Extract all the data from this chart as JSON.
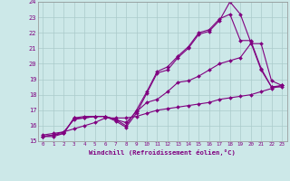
{
  "xlabel": "Windchill (Refroidissement éolien,°C)",
  "ylabel": "",
  "xlim": [
    -0.5,
    23.5
  ],
  "ylim": [
    15,
    24
  ],
  "xticks": [
    0,
    1,
    2,
    3,
    4,
    5,
    6,
    7,
    8,
    9,
    10,
    11,
    12,
    13,
    14,
    15,
    16,
    17,
    18,
    19,
    20,
    21,
    22,
    23
  ],
  "yticks": [
    15,
    16,
    17,
    18,
    19,
    20,
    21,
    22,
    23,
    24
  ],
  "bg_color": "#cce8e8",
  "line_color": "#800080",
  "grid_color": "#aacaca",
  "series": [
    {
      "x": [
        0,
        1,
        2,
        3,
        4,
        5,
        6,
        7,
        8,
        9,
        10,
        11,
        12,
        13,
        14,
        15,
        16,
        17,
        18,
        19,
        20,
        21,
        22,
        23
      ],
      "y": [
        15.3,
        15.3,
        15.5,
        16.5,
        16.5,
        16.6,
        16.6,
        16.3,
        15.9,
        16.8,
        18.1,
        19.4,
        19.6,
        20.4,
        21.0,
        21.9,
        22.1,
        22.8,
        24.0,
        23.2,
        21.4,
        19.6,
        18.5,
        18.6
      ]
    },
    {
      "x": [
        0,
        1,
        2,
        3,
        4,
        5,
        6,
        7,
        8,
        9,
        10,
        11,
        12,
        13,
        14,
        15,
        16,
        17,
        18,
        19,
        20,
        21,
        22,
        23
      ],
      "y": [
        15.3,
        15.4,
        15.5,
        16.5,
        16.6,
        16.6,
        16.6,
        16.4,
        16.0,
        17.0,
        18.2,
        19.5,
        19.8,
        20.5,
        21.1,
        22.0,
        22.2,
        22.9,
        23.2,
        21.5,
        21.5,
        19.7,
        18.5,
        18.5
      ]
    },
    {
      "x": [
        0,
        1,
        2,
        3,
        4,
        5,
        6,
        7,
        8,
        9,
        10,
        11,
        12,
        13,
        14,
        15,
        16,
        17,
        18,
        19,
        20,
        21,
        22,
        23
      ],
      "y": [
        15.3,
        15.4,
        15.6,
        16.4,
        16.5,
        16.6,
        16.6,
        16.4,
        16.2,
        16.9,
        17.5,
        17.7,
        18.2,
        18.8,
        18.9,
        19.2,
        19.6,
        20.0,
        20.2,
        20.4,
        21.3,
        21.3,
        18.9,
        18.6
      ]
    },
    {
      "x": [
        0,
        1,
        2,
        3,
        4,
        5,
        6,
        7,
        8,
        9,
        10,
        11,
        12,
        13,
        14,
        15,
        16,
        17,
        18,
        19,
        20,
        21,
        22,
        23
      ],
      "y": [
        15.4,
        15.5,
        15.6,
        15.8,
        16.0,
        16.2,
        16.5,
        16.5,
        16.5,
        16.6,
        16.8,
        17.0,
        17.1,
        17.2,
        17.3,
        17.4,
        17.5,
        17.7,
        17.8,
        17.9,
        18.0,
        18.2,
        18.4,
        18.6
      ]
    }
  ]
}
